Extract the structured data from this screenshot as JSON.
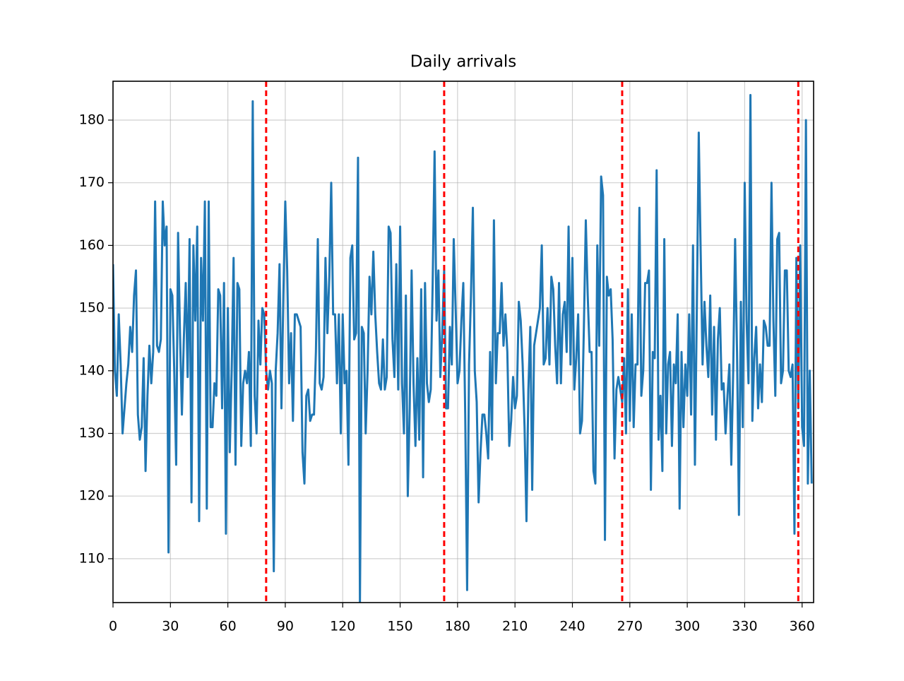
{
  "chart_data": {
    "type": "line",
    "title": "Daily arrivals",
    "x": [
      0,
      1,
      2,
      3,
      4,
      5,
      6,
      7,
      8,
      9,
      10,
      11,
      12,
      13,
      14,
      15,
      16,
      17,
      18,
      19,
      20,
      21,
      22,
      23,
      24,
      25,
      26,
      27,
      28,
      29,
      30,
      31,
      32,
      33,
      34,
      35,
      36,
      37,
      38,
      39,
      40,
      41,
      42,
      43,
      44,
      45,
      46,
      47,
      48,
      49,
      50,
      51,
      52,
      53,
      54,
      55,
      56,
      57,
      58,
      59,
      60,
      61,
      62,
      63,
      64,
      65,
      66,
      67,
      68,
      69,
      70,
      71,
      72,
      73,
      74,
      75,
      76,
      77,
      78,
      79,
      80,
      81,
      82,
      83,
      84,
      85,
      86,
      87,
      88,
      89,
      90,
      91,
      92,
      93,
      94,
      95,
      96,
      97,
      98,
      99,
      100,
      101,
      102,
      103,
      104,
      105,
      106,
      107,
      108,
      109,
      110,
      111,
      112,
      113,
      114,
      115,
      116,
      117,
      118,
      119,
      120,
      121,
      122,
      123,
      124,
      125,
      126,
      127,
      128,
      129,
      130,
      131,
      132,
      133,
      134,
      135,
      136,
      137,
      138,
      139,
      140,
      141,
      142,
      143,
      144,
      145,
      146,
      147,
      148,
      149,
      150,
      151,
      152,
      153,
      154,
      155,
      156,
      157,
      158,
      159,
      160,
      161,
      162,
      163,
      164,
      165,
      166,
      167,
      168,
      169,
      170,
      171,
      172,
      173,
      174,
      175,
      176,
      177,
      178,
      179,
      180,
      181,
      182,
      183,
      184,
      185,
      186,
      187,
      188,
      189,
      190,
      191,
      192,
      193,
      194,
      195,
      196,
      197,
      198,
      199,
      200,
      201,
      202,
      203,
      204,
      205,
      206,
      207,
      208,
      209,
      210,
      211,
      212,
      213,
      214,
      215,
      216,
      217,
      218,
      219,
      220,
      221,
      222,
      223,
      224,
      225,
      226,
      227,
      228,
      229,
      230,
      231,
      232,
      233,
      234,
      235,
      236,
      237,
      238,
      239,
      240,
      241,
      242,
      243,
      244,
      245,
      246,
      247,
      248,
      249,
      250,
      251,
      252,
      253,
      254,
      255,
      256,
      257,
      258,
      259,
      260,
      261,
      262,
      263,
      264,
      265,
      266,
      267,
      268,
      269,
      270,
      271,
      272,
      273,
      274,
      275,
      276,
      277,
      278,
      279,
      280,
      281,
      282,
      283,
      284,
      285,
      286,
      287,
      288,
      289,
      290,
      291,
      292,
      293,
      294,
      295,
      296,
      297,
      298,
      299,
      300,
      301,
      302,
      303,
      304,
      305,
      306,
      307,
      308,
      309,
      310,
      311,
      312,
      313,
      314,
      315,
      316,
      317,
      318,
      319,
      320,
      321,
      322,
      323,
      324,
      325,
      326,
      327,
      328,
      329,
      330,
      331,
      332,
      333,
      334,
      335,
      336,
      337,
      338,
      339,
      340,
      341,
      342,
      343,
      344,
      345,
      346,
      347,
      348,
      349,
      350,
      351,
      352,
      353,
      354,
      355,
      356,
      357,
      358,
      359,
      360,
      361,
      362,
      363,
      364,
      365
    ],
    "series": [
      {
        "color": "#1f77b4",
        "values": [
          157,
          140,
          136,
          149,
          141,
          130,
          134,
          138,
          141,
          147,
          143,
          152,
          156,
          133,
          129,
          131,
          142,
          124,
          136,
          144,
          138,
          143,
          167,
          144,
          143,
          145,
          167,
          160,
          163,
          111,
          153,
          152,
          140,
          125,
          162,
          146,
          133,
          145,
          154,
          139,
          161,
          119,
          160,
          148,
          163,
          116,
          158,
          148,
          167,
          118,
          167,
          131,
          131,
          138,
          136,
          153,
          152,
          134,
          154,
          114,
          150,
          127,
          140,
          158,
          125,
          154,
          153,
          128,
          138,
          140,
          138,
          143,
          128,
          183,
          136,
          130,
          148,
          141,
          150,
          149,
          140,
          137,
          140,
          138,
          108,
          140,
          146,
          157,
          134,
          152,
          167,
          156,
          138,
          146,
          132,
          149,
          149,
          148,
          147,
          127,
          122,
          136,
          137,
          132,
          133,
          133,
          143,
          161,
          138,
          137,
          139,
          158,
          146,
          155,
          170,
          149,
          149,
          138,
          149,
          130,
          149,
          138,
          140,
          125,
          158,
          160,
          145,
          146,
          174,
          103,
          147,
          146,
          130,
          140,
          155,
          149,
          159,
          149,
          143,
          138,
          137,
          145,
          137,
          139,
          163,
          162,
          145,
          139,
          157,
          137,
          163,
          138,
          130,
          152,
          120,
          134,
          156,
          138,
          128,
          142,
          129,
          153,
          123,
          154,
          138,
          135,
          137,
          154,
          175,
          148,
          156,
          139,
          146,
          156,
          134,
          134,
          147,
          141,
          161,
          150,
          138,
          140,
          148,
          154,
          133,
          105,
          141,
          152,
          166,
          140,
          135,
          119,
          127,
          133,
          133,
          130,
          126,
          143,
          129,
          164,
          138,
          146,
          146,
          154,
          144,
          149,
          143,
          128,
          132,
          139,
          134,
          136,
          151,
          148,
          141,
          131,
          116,
          137,
          147,
          121,
          144,
          146,
          148,
          150,
          160,
          141,
          142,
          150,
          141,
          155,
          153,
          144,
          138,
          154,
          138,
          149,
          151,
          143,
          163,
          141,
          158,
          137,
          142,
          149,
          130,
          132,
          147,
          164,
          152,
          143,
          143,
          124,
          122,
          160,
          144,
          171,
          168,
          113,
          155,
          152,
          153,
          145,
          126,
          137,
          139,
          137,
          135,
          142,
          130,
          153,
          132,
          149,
          131,
          141,
          141,
          166,
          136,
          140,
          154,
          154,
          156,
          121,
          143,
          142,
          172,
          129,
          136,
          124,
          161,
          130,
          141,
          143,
          128,
          141,
          138,
          149,
          118,
          143,
          131,
          141,
          136,
          149,
          133,
          160,
          125,
          150,
          178,
          159,
          141,
          151,
          144,
          139,
          152,
          133,
          147,
          129,
          145,
          150,
          137,
          138,
          130,
          136,
          141,
          125,
          140,
          161,
          143,
          117,
          151,
          131,
          170,
          148,
          138,
          184,
          132,
          142,
          147,
          134,
          141,
          135,
          148,
          147,
          144,
          144,
          170,
          148,
          136,
          161,
          162,
          138,
          140,
          156,
          156,
          140,
          139,
          141,
          114,
          158,
          134,
          160,
          131,
          128,
          180,
          122,
          140,
          122
        ]
      }
    ],
    "vlines": {
      "values": [
        80,
        173,
        266,
        358
      ],
      "color": "#ff0000"
    },
    "xlim": [
      0,
      366
    ],
    "ylim": [
      103,
      186.2
    ],
    "xticks": [
      0,
      30,
      60,
      90,
      120,
      150,
      180,
      210,
      240,
      270,
      300,
      330,
      360
    ],
    "yticks": [
      110,
      120,
      130,
      140,
      150,
      160,
      170,
      180
    ],
    "grid": true
  }
}
